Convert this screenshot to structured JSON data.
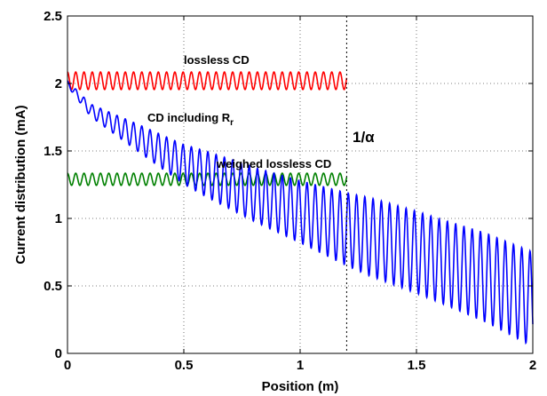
{
  "chart_data": {
    "type": "line",
    "title": "",
    "xlabel": "Position (m)",
    "ylabel": "Current distribution (mA)",
    "xlim": [
      0,
      2
    ],
    "ylim": [
      0,
      2.5
    ],
    "xticks": [
      0,
      0.5,
      1,
      1.5,
      2
    ],
    "xtick_labels": [
      "0",
      "0.5",
      "1",
      "1.5",
      "2"
    ],
    "yticks": [
      0,
      0.5,
      1,
      1.5,
      2,
      2.5
    ],
    "ytick_labels": [
      "0",
      "0.5",
      "1",
      "1.5",
      "2",
      "2.5"
    ],
    "grid": true,
    "series": [
      {
        "name": "lossless CD",
        "color": "#ff0000",
        "x_range": [
          0,
          1.2
        ],
        "center": 2.02,
        "amplitude": 0.065,
        "period": 0.0355
      },
      {
        "name": "weighed lossless CD",
        "color": "#008000",
        "x_range": [
          0,
          1.2
        ],
        "center": 1.29,
        "amplitude": 0.045,
        "period": 0.0355
      },
      {
        "name": "CD including R_r",
        "color": "#0000ff",
        "x_range": [
          0,
          2
        ],
        "period": 0.0355,
        "center_points": [
          [
            0,
            2.0
          ],
          [
            0.1,
            1.8
          ],
          [
            0.3,
            1.6
          ],
          [
            0.5,
            1.4
          ],
          [
            0.8,
            1.18
          ],
          [
            1.0,
            1.05
          ],
          [
            1.2,
            0.92
          ],
          [
            1.5,
            0.75
          ],
          [
            1.8,
            0.56
          ],
          [
            2.0,
            0.4
          ]
        ],
        "amplitude_points": [
          [
            0,
            0.02
          ],
          [
            0.3,
            0.1
          ],
          [
            0.6,
            0.17
          ],
          [
            1.0,
            0.23
          ],
          [
            1.3,
            0.29
          ],
          [
            1.6,
            0.31
          ],
          [
            2.0,
            0.35
          ]
        ]
      }
    ],
    "vline_x": 1.2,
    "annotations": {
      "lossless": "lossless CD",
      "including": "CD including R",
      "including_sub": "r",
      "weighed": "weighed lossless CD",
      "alpha": "1/α"
    }
  }
}
